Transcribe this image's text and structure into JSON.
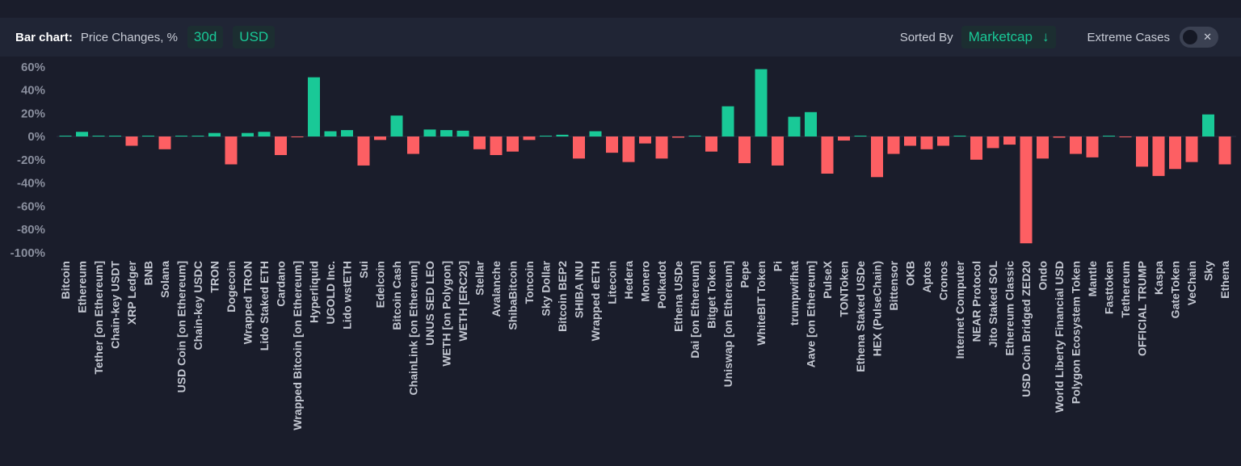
{
  "toolbar": {
    "title": "Bar chart:",
    "metric": "Price Changes, %",
    "period": "30d",
    "currency": "USD",
    "sorted_label": "Sorted By",
    "sort_value": "Marketcap",
    "sort_direction_icon": "arrow-down-icon",
    "extreme_label": "Extreme Cases",
    "extreme_enabled": false
  },
  "colors": {
    "positive": "#19c997",
    "negative": "#fd5f63",
    "background": "#1a1d2b",
    "toolbar": "#202535"
  },
  "chart_data": {
    "type": "bar",
    "title": "Price Changes, %",
    "xlabel": "",
    "ylabel": "",
    "ylim": [
      -100,
      60
    ],
    "yticks": [
      60,
      40,
      20,
      0,
      -20,
      -40,
      -60,
      -80,
      -100
    ],
    "ytick_labels": [
      "60%",
      "40%",
      "20%",
      "0%",
      "-20%",
      "-40%",
      "-60%",
      "-80%",
      "-100%"
    ],
    "grid": false,
    "categories": [
      "Bitcoin",
      "Ethereum",
      "Tether [on Ethereum]",
      "Chain-key USDT",
      "XRP Ledger",
      "BNB",
      "Solana",
      "USD Coin [on Ethereum]",
      "Chain-key USDC",
      "TRON",
      "Dogecoin",
      "Wrapped TRON",
      "Lido Staked ETH",
      "Cardano",
      "Wrapped Bitcoin [on Ethereum]",
      "Hyperliquid",
      "UGOLD Inc.",
      "Lido wstETH",
      "Sui",
      "Edelcoin",
      "Bitcoin Cash",
      "ChainLink [on Ethereum]",
      "UNUS SED LEO",
      "WETH [on Polygon]",
      "WETH [ERC20]",
      "Stellar",
      "Avalanche",
      "ShibaBitcoin",
      "Toncoin",
      "Sky Dollar",
      "Bitcoin BEP2",
      "SHIBA INU",
      "Wrapped eETH",
      "Litecoin",
      "Hedera",
      "Monero",
      "Polkadot",
      "Ethena USDe",
      "Dai [on Ethereum]",
      "Bitget Token",
      "Uniswap [on Ethereum]",
      "Pepe",
      "WhiteBIT Token",
      "Pi",
      "trumpwifhat",
      "Aave [on Ethereum]",
      "PulseX",
      "TONToken",
      "Ethena Staked USDe",
      "HEX (PulseChain)",
      "Bittensor",
      "OKB",
      "Aptos",
      "Cronos",
      "Internet Computer",
      "NEAR Protocol",
      "Jito Staked SOL",
      "Ethereum Classic",
      "USD Coin Bridged ZED20",
      "Ondo",
      "World Liberty Financial USD",
      "Polygon Ecosystem Token",
      "Mantle",
      "Fasttoken",
      "Tethereum",
      "OFFICIAL TRUMP",
      "Kaspa",
      "GateToken",
      "VeChain",
      "Sky",
      "Ethena"
    ],
    "values": [
      0,
      4,
      0.5,
      0.3,
      -8,
      0.5,
      -11,
      0.4,
      0.3,
      3,
      -24,
      3,
      4,
      -16,
      -0.5,
      51,
      4.5,
      5.5,
      -25,
      -3,
      18,
      -15,
      6,
      5.5,
      5,
      -11,
      -16,
      -13,
      -3,
      0.2,
      1.5,
      -19,
      4.5,
      -14,
      -22,
      -6,
      -19,
      -1,
      0.5,
      -13,
      26,
      -23,
      58,
      -25,
      17,
      21,
      -32,
      -3.5,
      0.3,
      -35,
      -15,
      -8,
      -11,
      -8,
      0.3,
      -20,
      -10,
      -7,
      -92,
      -19,
      -1,
      -15,
      -18,
      0.5,
      -0.3,
      -26,
      -34,
      -28,
      -22,
      19,
      -24
    ]
  }
}
